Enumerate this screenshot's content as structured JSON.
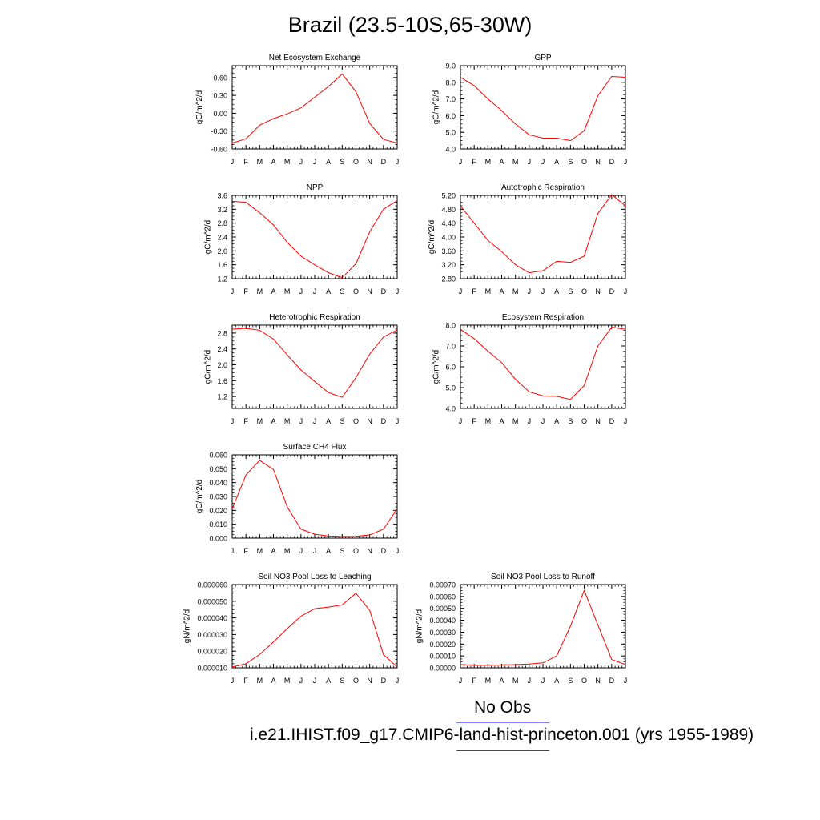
{
  "page": {
    "title": "Brazil (23.5-10S,65-30W)"
  },
  "legend": {
    "obs_label": "No Obs",
    "obs_color": "#8080ff",
    "model_label": "i.e21.IHIST.f09_g17.CMIP6-land-hist-princeton.001 (yrs 1955-1989)",
    "model_color": "#ff0000"
  },
  "chart_data": [
    {
      "type": "line",
      "title": "Net Ecosystem Exchange",
      "ylabel": "gC/m^2/d",
      "xlabel": "",
      "categories": [
        "J",
        "F",
        "M",
        "A",
        "M",
        "J",
        "J",
        "A",
        "S",
        "O",
        "N",
        "D",
        "J"
      ],
      "ylim": [
        -0.6,
        0.8
      ],
      "yticks": [
        "-0.60",
        "-0.30",
        "0.00",
        "0.30",
        "0.60"
      ],
      "ytick_values": [
        -0.6,
        -0.3,
        0.0,
        0.3,
        0.6
      ],
      "series": [
        {
          "values": [
            -0.5,
            -0.43,
            -0.2,
            -0.09,
            -0.01,
            0.09,
            0.27,
            0.45,
            0.66,
            0.36,
            -0.17,
            -0.44,
            -0.5
          ]
        }
      ]
    },
    {
      "type": "line",
      "title": "GPP",
      "ylabel": "gC/m^2/d",
      "xlabel": "",
      "categories": [
        "J",
        "F",
        "M",
        "A",
        "M",
        "J",
        "J",
        "A",
        "S",
        "O",
        "N",
        "D",
        "J"
      ],
      "ylim": [
        4.0,
        9.0
      ],
      "yticks": [
        "4.0",
        "5.0",
        "6.0",
        "7.0",
        "8.0",
        "9.0"
      ],
      "ytick_values": [
        4.0,
        5.0,
        6.0,
        7.0,
        8.0,
        9.0
      ],
      "series": [
        {
          "values": [
            8.3,
            7.8,
            7.0,
            6.3,
            5.5,
            4.85,
            4.65,
            4.65,
            4.5,
            5.1,
            7.2,
            8.35,
            8.3
          ]
        }
      ]
    },
    {
      "type": "line",
      "title": "NPP",
      "ylabel": "gC/m^2/d",
      "xlabel": "",
      "categories": [
        "J",
        "F",
        "M",
        "A",
        "M",
        "J",
        "J",
        "A",
        "S",
        "O",
        "N",
        "D",
        "J"
      ],
      "ylim": [
        1.2,
        3.6
      ],
      "yticks": [
        "1.2",
        "1.6",
        "2.0",
        "2.4",
        "2.8",
        "3.2",
        "3.6"
      ],
      "ytick_values": [
        1.2,
        1.6,
        2.0,
        2.4,
        2.8,
        3.2,
        3.6
      ],
      "series": [
        {
          "values": [
            3.43,
            3.4,
            3.1,
            2.75,
            2.25,
            1.85,
            1.6,
            1.37,
            1.23,
            1.63,
            2.55,
            3.2,
            3.45
          ]
        }
      ]
    },
    {
      "type": "line",
      "title": "Autotrophic Respiration",
      "ylabel": "gC/m^2/d",
      "xlabel": "",
      "categories": [
        "J",
        "F",
        "M",
        "A",
        "M",
        "J",
        "J",
        "A",
        "S",
        "O",
        "N",
        "D",
        "J"
      ],
      "ylim": [
        2.8,
        5.2
      ],
      "yticks": [
        "2.80",
        "3.20",
        "3.60",
        "4.00",
        "4.40",
        "4.80",
        "5.20"
      ],
      "ytick_values": [
        2.8,
        3.2,
        3.6,
        4.0,
        4.4,
        4.8,
        5.2
      ],
      "series": [
        {
          "values": [
            4.9,
            4.4,
            3.9,
            3.58,
            3.2,
            2.97,
            3.03,
            3.3,
            3.27,
            3.45,
            4.68,
            5.22,
            4.9
          ]
        }
      ]
    },
    {
      "type": "line",
      "title": "Heterotrophic Respiration",
      "ylabel": "gC/m^2/d",
      "xlabel": "",
      "categories": [
        "J",
        "F",
        "M",
        "A",
        "M",
        "J",
        "J",
        "A",
        "S",
        "O",
        "N",
        "D",
        "J"
      ],
      "ylim": [
        0.9,
        3.0
      ],
      "yticks": [
        "1.2",
        "1.6",
        "2.0",
        "2.4",
        "2.8"
      ],
      "ytick_values": [
        1.2,
        1.6,
        2.0,
        2.4,
        2.8
      ],
      "series": [
        {
          "values": [
            2.9,
            2.92,
            2.87,
            2.65,
            2.25,
            1.87,
            1.58,
            1.3,
            1.18,
            1.68,
            2.27,
            2.7,
            2.88
          ]
        }
      ]
    },
    {
      "type": "line",
      "title": "Ecosystem Respiration",
      "ylabel": "gC/m^2/d",
      "xlabel": "",
      "categories": [
        "J",
        "F",
        "M",
        "A",
        "M",
        "J",
        "J",
        "A",
        "S",
        "O",
        "N",
        "D",
        "J"
      ],
      "ylim": [
        4.0,
        8.0
      ],
      "yticks": [
        "4.0",
        "5.0",
        "6.0",
        "7.0",
        "8.0"
      ],
      "ytick_values": [
        4.0,
        5.0,
        6.0,
        7.0,
        8.0
      ],
      "series": [
        {
          "values": [
            7.8,
            7.35,
            6.75,
            6.2,
            5.4,
            4.8,
            4.6,
            4.58,
            4.43,
            5.1,
            7.0,
            7.9,
            7.8
          ]
        }
      ]
    },
    {
      "type": "line",
      "title": "Surface CH4 Flux",
      "ylabel": "gC/m^2/d",
      "xlabel": "",
      "categories": [
        "J",
        "F",
        "M",
        "A",
        "M",
        "J",
        "J",
        "A",
        "S",
        "O",
        "N",
        "D",
        "J"
      ],
      "ylim": [
        0.0,
        0.06
      ],
      "yticks": [
        "0.000",
        "0.010",
        "0.020",
        "0.030",
        "0.040",
        "0.050",
        "0.060"
      ],
      "ytick_values": [
        0.0,
        0.01,
        0.02,
        0.03,
        0.04,
        0.05,
        0.06
      ],
      "series": [
        {
          "values": [
            0.021,
            0.0455,
            0.056,
            0.0495,
            0.0225,
            0.0065,
            0.0028,
            0.0015,
            0.0012,
            0.0013,
            0.0023,
            0.0065,
            0.021
          ]
        }
      ]
    },
    {
      "type": "line",
      "title": "Soil NO3 Pool Loss to Leaching",
      "ylabel": "gN/m^2/d",
      "xlabel": "",
      "categories": [
        "J",
        "F",
        "M",
        "A",
        "M",
        "J",
        "J",
        "A",
        "S",
        "O",
        "N",
        "D",
        "J"
      ],
      "ylim": [
        1e-05,
        6e-05
      ],
      "yticks": [
        "0.000010",
        "0.000020",
        "0.000030",
        "0.000040",
        "0.000050",
        "0.000060"
      ],
      "ytick_values": [
        1e-05,
        2e-05,
        3e-05,
        4e-05,
        5e-05,
        6e-05
      ],
      "series": [
        {
          "values": [
            1.05e-05,
            1.25e-05,
            1.8e-05,
            2.55e-05,
            3.35e-05,
            4.1e-05,
            4.55e-05,
            4.65e-05,
            4.78e-05,
            5.48e-05,
            4.45e-05,
            1.8e-05,
            1.05e-05
          ]
        }
      ]
    },
    {
      "type": "line",
      "title": "Soil NO3 Pool Loss to Runoff",
      "ylabel": "gN/m^2/d",
      "xlabel": "",
      "categories": [
        "J",
        "F",
        "M",
        "A",
        "M",
        "J",
        "J",
        "A",
        "S",
        "O",
        "N",
        "D",
        "J"
      ],
      "ylim": [
        0.0,
        0.0007
      ],
      "yticks": [
        "0.00000",
        "0.00010",
        "0.00020",
        "0.00030",
        "0.00040",
        "0.00050",
        "0.00060",
        "0.00070"
      ],
      "ytick_values": [
        0.0,
        0.0001,
        0.0002,
        0.0003,
        0.0004,
        0.0005,
        0.0006,
        0.0007
      ],
      "series": [
        {
          "values": [
            2.8e-05,
            2.2e-05,
            2.2e-05,
            2.4e-05,
            2.7e-05,
            3.2e-05,
            4.2e-05,
            0.0001,
            0.00035,
            0.00065,
            0.00036,
            7e-05,
            2.8e-05
          ]
        }
      ]
    }
  ]
}
